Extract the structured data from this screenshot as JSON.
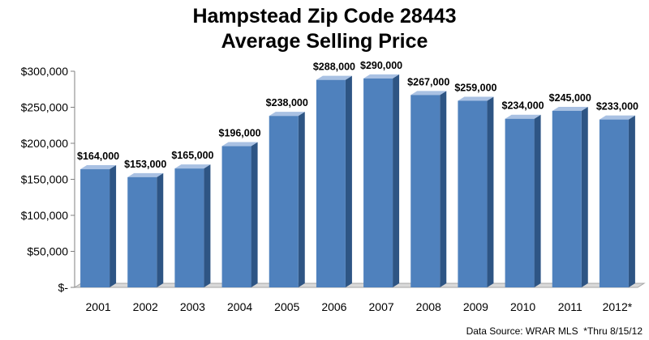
{
  "chart_data": {
    "type": "bar",
    "title": "Hampstead Zip Code 28443",
    "subtitle": "Average Selling Price",
    "categories": [
      "2001",
      "2002",
      "2003",
      "2004",
      "2005",
      "2006",
      "2007",
      "2008",
      "2009",
      "2010",
      "2011",
      "2012*"
    ],
    "values": [
      164000,
      153000,
      165000,
      196000,
      238000,
      288000,
      290000,
      267000,
      259000,
      234000,
      245000,
      233000
    ],
    "data_labels": [
      "$164,000",
      "$153,000",
      "$165,000",
      "$196,000",
      "$238,000",
      "$288,000",
      "$290,000",
      "$267,000",
      "$259,000",
      "$234,000",
      "$245,000",
      "$233,000"
    ],
    "y_ticks": [
      0,
      50000,
      100000,
      150000,
      200000,
      250000,
      300000
    ],
    "y_tick_labels": [
      "$-",
      "$50,000",
      "$100,000",
      "$150,000",
      "$200,000",
      "$250,000",
      "$300,000"
    ],
    "ylim": [
      0,
      300000
    ],
    "grid": false,
    "legend": "none",
    "bar_color": "#4F81BD",
    "bar_side_color": "#2E5584",
    "bar_top_color": "#A9C1E3",
    "source_note": "Data Source: WRAR MLS  *Thru 8/15/12"
  }
}
